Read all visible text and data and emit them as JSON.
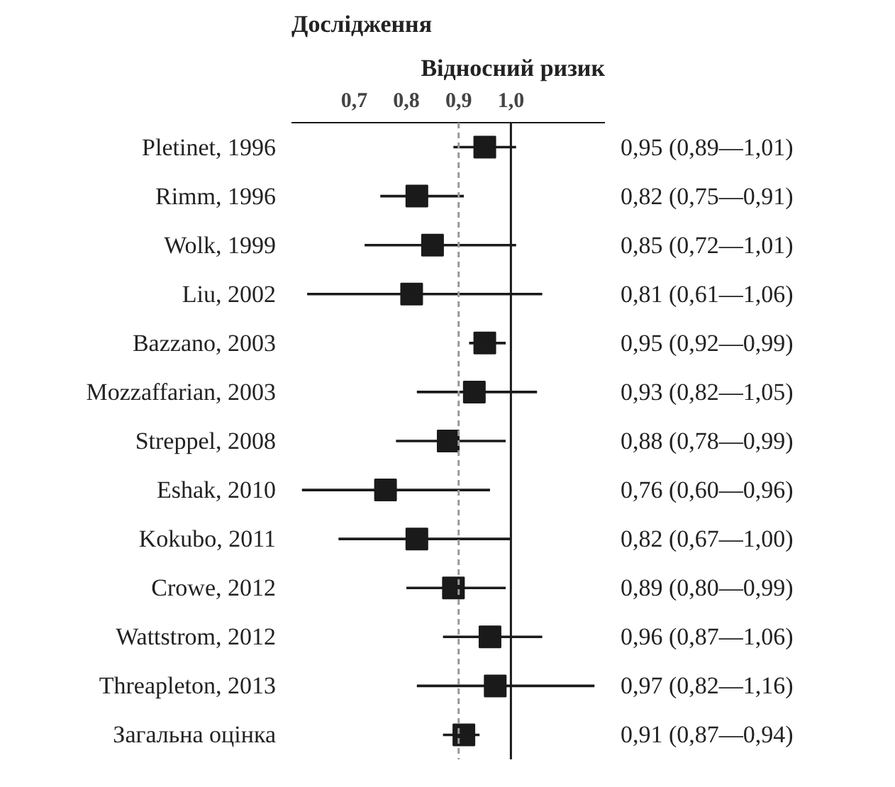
{
  "chart_data": {
    "type": "scatter",
    "orientation": "horizontal",
    "ylabel": "Дослідження",
    "y2label": "Відносний ризик",
    "categories": [
      "Pletinet, 1996",
      "Rimm, 1996",
      "Wolk, 1999",
      "Liu, 2002",
      "Bazzano, 2003",
      "Mozzaffarian, 2003",
      "Streppel, 2008",
      "Eshak, 2010",
      "Kokubo, 2011",
      "Crowe, 2012",
      "Wattstrom, 2012",
      "Threapleton, 2013",
      "Загальна оцінка"
    ],
    "values": [
      0.95,
      0.82,
      0.85,
      0.81,
      0.95,
      0.93,
      0.88,
      0.76,
      0.82,
      0.89,
      0.96,
      0.97,
      0.91
    ],
    "errors": [
      [
        0.89,
        1.01
      ],
      [
        0.75,
        0.91
      ],
      [
        0.72,
        1.01
      ],
      [
        0.61,
        1.06
      ],
      [
        0.92,
        0.99
      ],
      [
        0.82,
        1.05
      ],
      [
        0.78,
        0.99
      ],
      [
        0.6,
        0.96
      ],
      [
        0.67,
        1.0
      ],
      [
        0.8,
        0.99
      ],
      [
        0.87,
        1.06
      ],
      [
        0.82,
        1.16
      ],
      [
        0.87,
        0.94
      ]
    ],
    "value_labels": [
      "0,95 (0,89—1,01)",
      "0,82 (0,75—0,91)",
      "0,85 (0,72—1,01)",
      "0,81 (0,61—1,06)",
      "0,95 (0,92—0,99)",
      "0,93 (0,82—1,05)",
      "0,88 (0,78—0,99)",
      "0,76 (0,60—0,96)",
      "0,82 (0,67—1,00)",
      "0,89 (0,80—0,99)",
      "0,96 (0,87—1,06)",
      "0,97 (0,82—1,16)",
      "0,91 (0,87—0,94)"
    ],
    "color": "#1a1a1a",
    "marker": "square",
    "grid": false,
    "xlim": [
      0.58,
      1.18
    ],
    "xticks": [
      {
        "value": 0.7,
        "label": "0,7"
      },
      {
        "value": 0.8,
        "label": "0,8"
      },
      {
        "value": 0.9,
        "label": "0,9"
      },
      {
        "value": 1.0,
        "label": "1,0"
      }
    ],
    "ref_lines": [
      {
        "axis": "x",
        "value": 0.9,
        "color": "#999999",
        "line_style": "dashed"
      },
      {
        "axis": "x",
        "value": 1.0,
        "color": "#1a1a1a",
        "line_style": "solid"
      }
    ]
  }
}
